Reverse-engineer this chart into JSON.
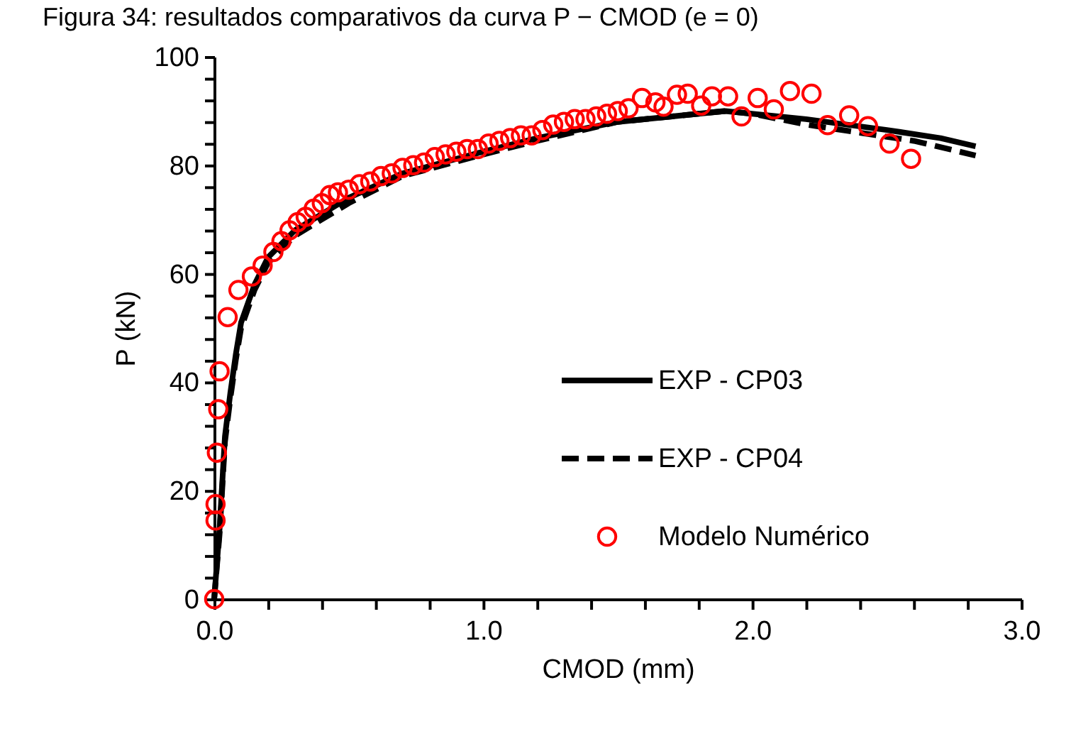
{
  "chart_data": {
    "type": "line",
    "title": "Figura 34: resultados comparativos da curva P − CMOD (e = 0)",
    "xlabel": "CMOD (mm)",
    "ylabel": "P (kN)",
    "legend": "right",
    "xlim": [
      0,
      3
    ],
    "ylim": [
      0,
      100
    ],
    "xticks": [
      {
        "value": 0,
        "label": "0.0"
      },
      {
        "value": 0.2,
        "label": null
      },
      {
        "value": 0.4,
        "label": null
      },
      {
        "value": 0.6,
        "label": null
      },
      {
        "value": 0.8,
        "label": null
      },
      {
        "value": 1,
        "label": "1.0"
      },
      {
        "value": 1.2,
        "label": null
      },
      {
        "value": 1.4,
        "label": null
      },
      {
        "value": 1.6,
        "label": null
      },
      {
        "value": 1.8,
        "label": null
      },
      {
        "value": 2,
        "label": "2.0"
      },
      {
        "value": 2.2,
        "label": null
      },
      {
        "value": 2.4,
        "label": null
      },
      {
        "value": 2.6,
        "label": null
      },
      {
        "value": 2.8,
        "label": null
      },
      {
        "value": 3,
        "label": "3.0"
      }
    ],
    "yticks": [
      0,
      {
        "value": 4,
        "label": null
      },
      {
        "value": 8,
        "label": null
      },
      {
        "value": 12,
        "label": null
      },
      {
        "value": 16,
        "label": null
      },
      20,
      {
        "value": 24,
        "label": null
      },
      {
        "value": 28,
        "label": null
      },
      {
        "value": 32,
        "label": null
      },
      {
        "value": 36,
        "label": null
      },
      40,
      {
        "value": 44,
        "label": null
      },
      {
        "value": 48,
        "label": null
      },
      {
        "value": 52,
        "label": null
      },
      {
        "value": 56,
        "label": null
      },
      60,
      {
        "value": 64,
        "label": null
      },
      {
        "value": 68,
        "label": null
      },
      {
        "value": 72,
        "label": null
      },
      {
        "value": 76,
        "label": null
      },
      80,
      {
        "value": 84,
        "label": null
      },
      {
        "value": 88,
        "label": null
      },
      {
        "value": 92,
        "label": null
      },
      {
        "value": 96,
        "label": null
      },
      100
    ],
    "series": [
      {
        "name": "EXP - CP03",
        "type": "line",
        "color": "#000000",
        "line_style": "solid",
        "marker": "none",
        "x": [
          0,
          0.02,
          0.04,
          0.06,
          0.08,
          0.1,
          0.15,
          0.2,
          0.3,
          0.4,
          0.5,
          0.7,
          1.0,
          1.2,
          1.5,
          1.8,
          1.9,
          2.2,
          2.5,
          2.7,
          2.83
        ],
        "values": [
          0,
          13,
          30,
          38,
          45,
          51,
          58,
          63,
          68,
          71,
          74,
          78.5,
          82.5,
          85,
          88,
          89.5,
          90,
          88.5,
          86.5,
          85,
          83.5
        ]
      },
      {
        "name": "EXP - CP04",
        "type": "line",
        "color": "#000000",
        "line_style": "dashed",
        "marker": "none",
        "x": [
          0,
          0.02,
          0.04,
          0.06,
          0.08,
          0.1,
          0.15,
          0.2,
          0.3,
          0.4,
          0.5,
          0.7,
          1.0,
          1.2,
          1.5,
          1.8,
          1.9,
          2.0,
          2.2,
          2.4,
          2.6,
          2.83
        ],
        "values": [
          0,
          12,
          29,
          37,
          44,
          50,
          57,
          62,
          67,
          70,
          73,
          78,
          82,
          84.5,
          88,
          89.5,
          90,
          89.5,
          87.5,
          86,
          84.5,
          81.8
        ]
      },
      {
        "name": "Modelo Numérico",
        "type": "scatter",
        "color": "#ff0000",
        "marker": "circle",
        "x": [
          0,
          0.005,
          0.005,
          0.01,
          0.015,
          0.02,
          0.05,
          0.09,
          0.14,
          0.18,
          0.22,
          0.25,
          0.28,
          0.31,
          0.34,
          0.37,
          0.4,
          0.43,
          0.46,
          0.5,
          0.54,
          0.58,
          0.62,
          0.66,
          0.7,
          0.74,
          0.78,
          0.82,
          0.86,
          0.9,
          0.94,
          0.98,
          1.02,
          1.06,
          1.1,
          1.14,
          1.18,
          1.22,
          1.26,
          1.3,
          1.34,
          1.38,
          1.42,
          1.46,
          1.5,
          1.54,
          1.59,
          1.64,
          1.67,
          1.72,
          1.76,
          1.81,
          1.85,
          1.91,
          1.96,
          2.02,
          2.08,
          2.14,
          2.22,
          2.28,
          2.36,
          2.43,
          2.51,
          2.59
        ],
        "values": [
          0,
          14.5,
          17.5,
          27,
          35,
          42,
          52,
          57,
          59.5,
          61.5,
          64,
          66,
          68,
          69.5,
          70.5,
          72,
          73,
          74.5,
          75,
          75.5,
          76.5,
          77,
          78,
          78.5,
          79.5,
          80,
          80.5,
          81.5,
          82,
          82.5,
          83,
          83,
          84,
          84.5,
          85,
          85.5,
          85.5,
          86.5,
          87.5,
          88,
          88.5,
          88.5,
          89,
          89.5,
          90,
          90.5,
          92.4,
          91.6,
          90.8,
          93,
          93.2,
          91,
          92.7,
          92.7,
          89,
          92.4,
          90.3,
          93.7,
          93.2,
          87.4,
          89.2,
          87.2,
          84,
          81.2
        ]
      }
    ]
  }
}
